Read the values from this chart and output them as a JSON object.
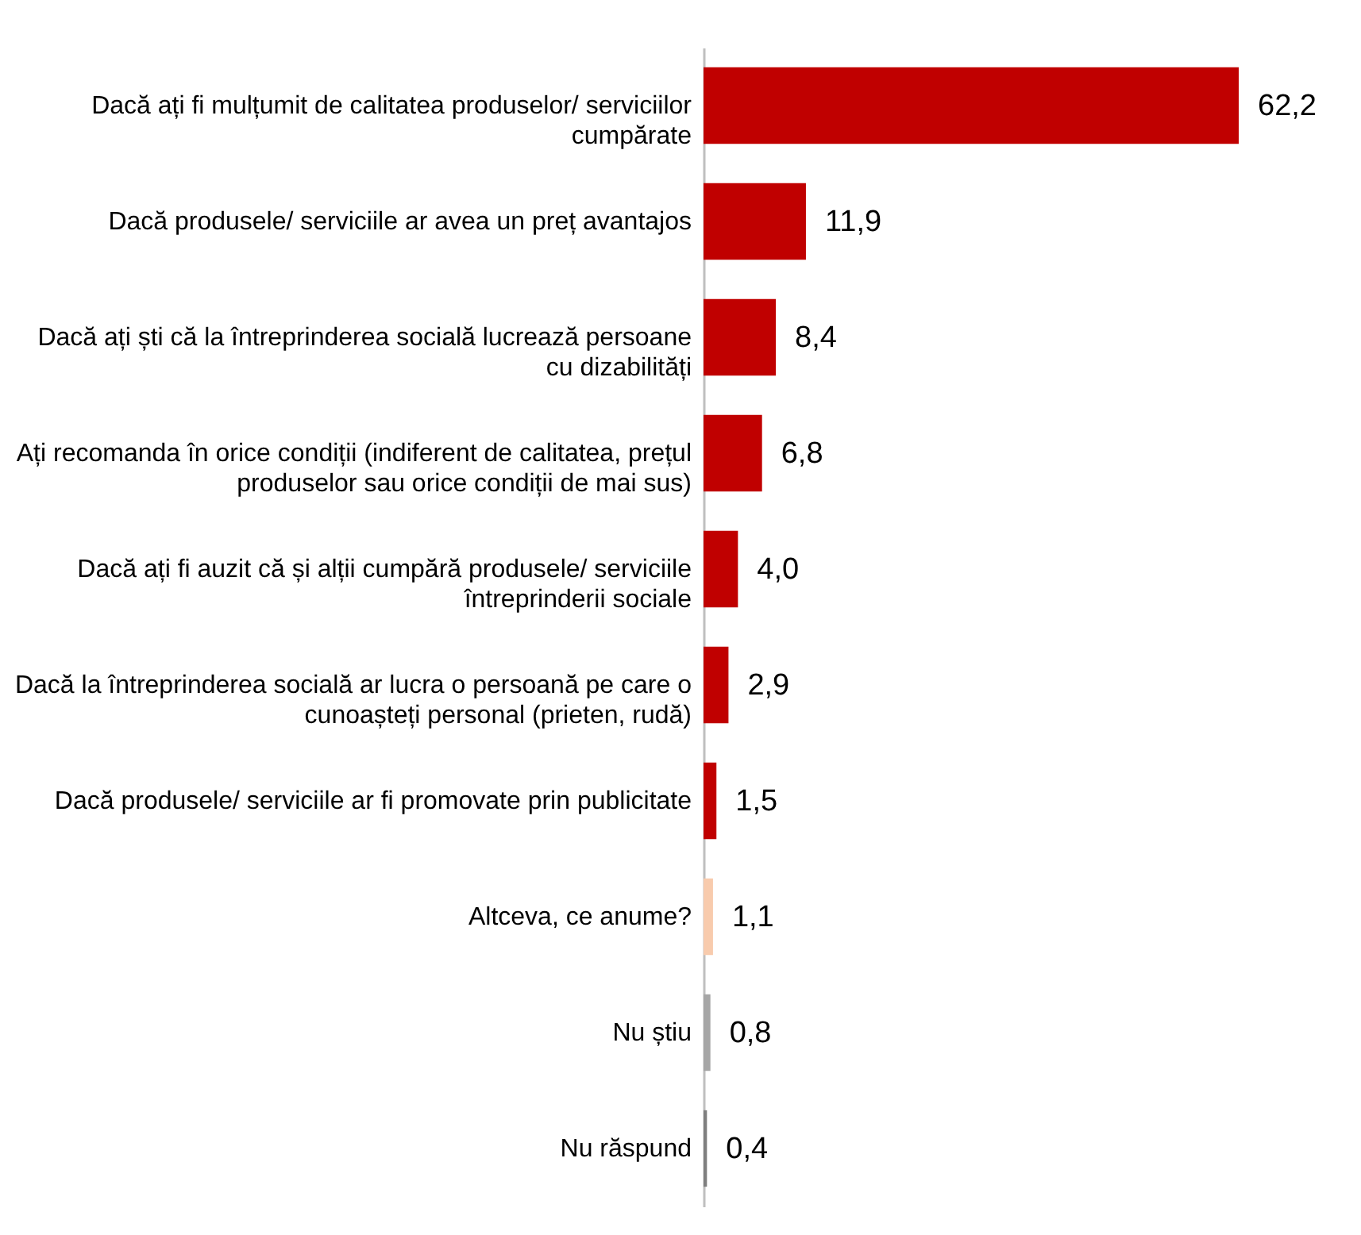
{
  "chart_data": {
    "type": "bar",
    "orientation": "horizontal",
    "categories": [
      "Dacă ați fi mulțumit de calitatea produselor/ serviciilor cumpărate",
      "Dacă produsele/ serviciile ar avea un preț avantajos",
      "Dacă ați ști că la întreprinderea socială lucrează persoane cu dizabilități",
      "Ați recomanda în orice condiții (indiferent de calitatea, prețul produselor sau orice condiții de mai sus)",
      "Dacă ați fi auzit că și alții cumpără produsele/ serviciile întreprinderii sociale",
      "Dacă la întreprinderea socială ar lucra o persoană pe care o cunoașteți personal (prieten, rudă)",
      "Dacă produsele/ serviciile ar fi promovate prin publicitate",
      "Altceva, ce anume?",
      "Nu știu",
      "Nu răspund"
    ],
    "values": [
      62.2,
      11.9,
      8.4,
      6.8,
      4.0,
      2.9,
      1.5,
      1.1,
      0.8,
      0.4
    ],
    "colors": [
      "#c00000",
      "#c00000",
      "#c00000",
      "#c00000",
      "#c00000",
      "#c00000",
      "#c00000",
      "#f8cbad",
      "#a6a6a6",
      "#7f7f7f"
    ],
    "value_labels": [
      "62,2",
      "11,9",
      "8,4",
      "6,8",
      "4,0",
      "2,9",
      "1,5",
      "1,1",
      "0,8",
      "0,4"
    ]
  }
}
